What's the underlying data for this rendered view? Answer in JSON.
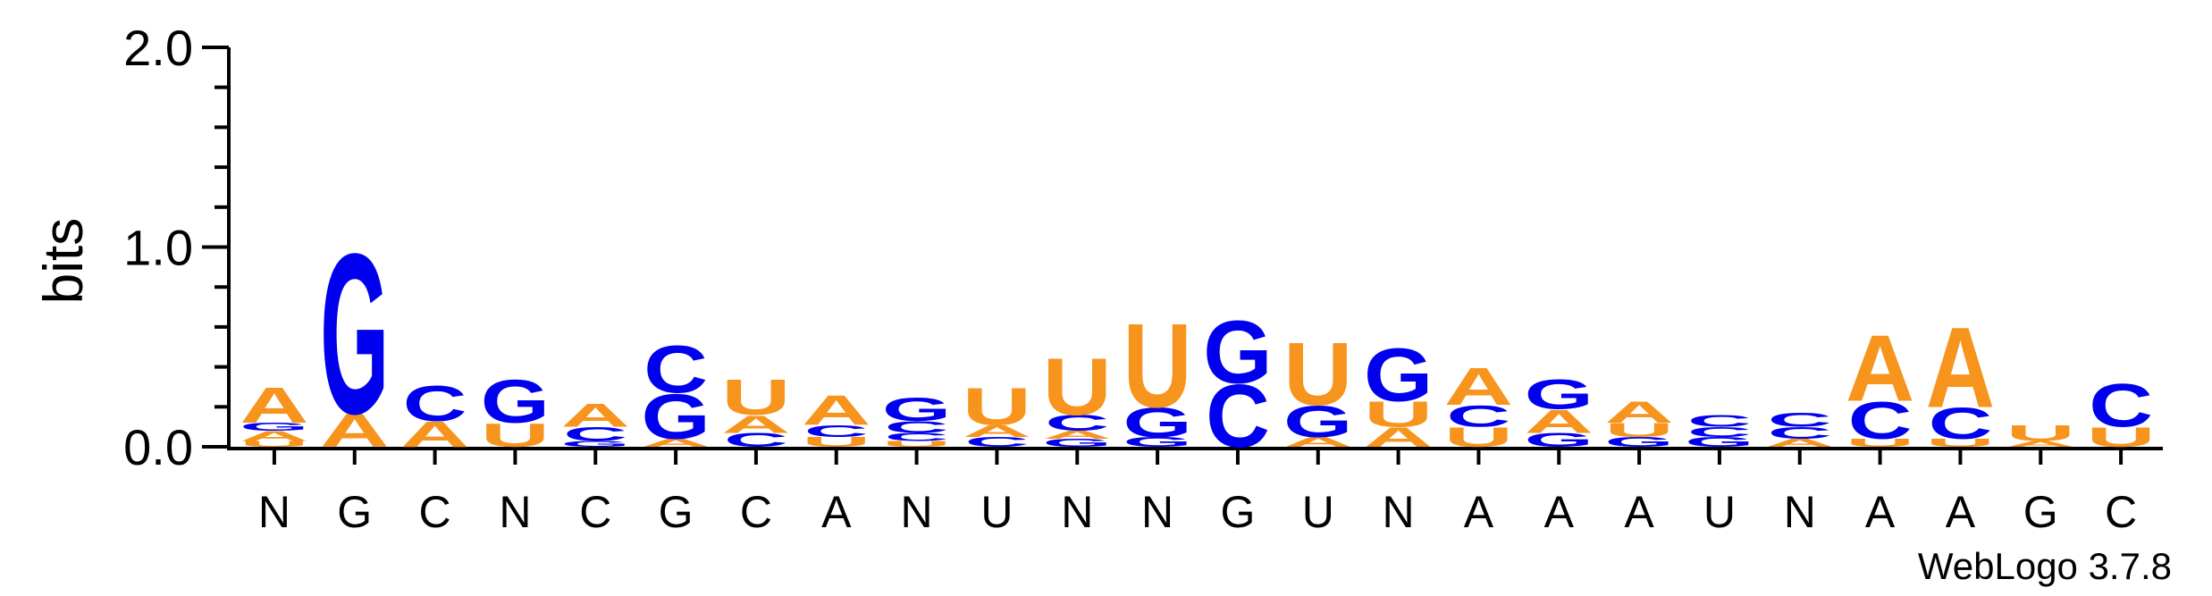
{
  "chart_data": {
    "type": "sequence-logo",
    "ylabel": "bits",
    "ylim": [
      0,
      2
    ],
    "yticks": [
      "0.0",
      "1.0",
      "2.0"
    ],
    "credit": "WebLogo 3.7.8",
    "colors": {
      "A": "#f7941d",
      "U": "#f7941d",
      "G": "#0000ee",
      "C": "#0000ee"
    },
    "positions": [
      {
        "label": "N",
        "stack": [
          [
            "U",
            0.03
          ],
          [
            "A",
            0.05
          ],
          [
            "G",
            0.04
          ],
          [
            "A",
            0.18
          ]
        ]
      },
      {
        "label": "G",
        "stack": [
          [
            "A",
            0.17
          ],
          [
            "G",
            0.82
          ]
        ]
      },
      {
        "label": "C",
        "stack": [
          [
            "A",
            0.13
          ],
          [
            "C",
            0.18
          ]
        ]
      },
      {
        "label": "N",
        "stack": [
          [
            "U",
            0.12
          ],
          [
            "G",
            0.22
          ]
        ]
      },
      {
        "label": "C",
        "stack": [
          [
            "G",
            0.03
          ],
          [
            "C",
            0.07
          ],
          [
            "A",
            0.12
          ]
        ]
      },
      {
        "label": "G",
        "stack": [
          [
            "A",
            0.04
          ],
          [
            "G",
            0.23
          ],
          [
            "C",
            0.24
          ]
        ]
      },
      {
        "label": "C",
        "stack": [
          [
            "C",
            0.07
          ],
          [
            "A",
            0.09
          ],
          [
            "U",
            0.18
          ]
        ]
      },
      {
        "label": "A",
        "stack": [
          [
            "U",
            0.05
          ],
          [
            "C",
            0.06
          ],
          [
            "A",
            0.15
          ]
        ]
      },
      {
        "label": "N",
        "stack": [
          [
            "U",
            0.03
          ],
          [
            "C",
            0.04
          ],
          [
            "C",
            0.06
          ],
          [
            "G",
            0.12
          ]
        ]
      },
      {
        "label": "U",
        "stack": [
          [
            "C",
            0.05
          ],
          [
            "A",
            0.06
          ],
          [
            "U",
            0.19
          ]
        ]
      },
      {
        "label": "N",
        "stack": [
          [
            "G",
            0.04
          ],
          [
            "A",
            0.04
          ],
          [
            "C",
            0.08
          ],
          [
            "U",
            0.29
          ]
        ]
      },
      {
        "label": "N",
        "stack": [
          [
            "G",
            0.05
          ],
          [
            "G",
            0.15
          ],
          [
            "U",
            0.43
          ]
        ]
      },
      {
        "label": "G",
        "stack": [
          [
            "C",
            0.32
          ],
          [
            "G",
            0.32
          ]
        ]
      },
      {
        "label": "U",
        "stack": [
          [
            "A",
            0.05
          ],
          [
            "G",
            0.16
          ],
          [
            "U",
            0.32
          ]
        ]
      },
      {
        "label": "N",
        "stack": [
          [
            "A",
            0.1
          ],
          [
            "U",
            0.13
          ],
          [
            "G",
            0.27
          ]
        ]
      },
      {
        "label": "A",
        "stack": [
          [
            "U",
            0.1
          ],
          [
            "C",
            0.11
          ],
          [
            "A",
            0.19
          ]
        ]
      },
      {
        "label": "A",
        "stack": [
          [
            "G",
            0.07
          ],
          [
            "A",
            0.12
          ],
          [
            "G",
            0.15
          ]
        ]
      },
      {
        "label": "A",
        "stack": [
          [
            "G",
            0.05
          ],
          [
            "U",
            0.07
          ],
          [
            "A",
            0.11
          ]
        ]
      },
      {
        "label": "U",
        "stack": [
          [
            "G",
            0.05
          ],
          [
            "C",
            0.05
          ],
          [
            "C",
            0.06
          ]
        ]
      },
      {
        "label": "N",
        "stack": [
          [
            "A",
            0.04
          ],
          [
            "C",
            0.06
          ],
          [
            "C",
            0.07
          ]
        ]
      },
      {
        "label": "A",
        "stack": [
          [
            "U",
            0.04
          ],
          [
            "C",
            0.19
          ],
          [
            "A",
            0.34
          ]
        ]
      },
      {
        "label": "A",
        "stack": [
          [
            "U",
            0.04
          ],
          [
            "C",
            0.16
          ],
          [
            "A",
            0.41
          ]
        ]
      },
      {
        "label": "G",
        "stack": [
          [
            "A",
            0.03
          ],
          [
            "U",
            0.08
          ]
        ]
      },
      {
        "label": "C",
        "stack": [
          [
            "U",
            0.1
          ],
          [
            "C",
            0.22
          ]
        ]
      }
    ]
  }
}
